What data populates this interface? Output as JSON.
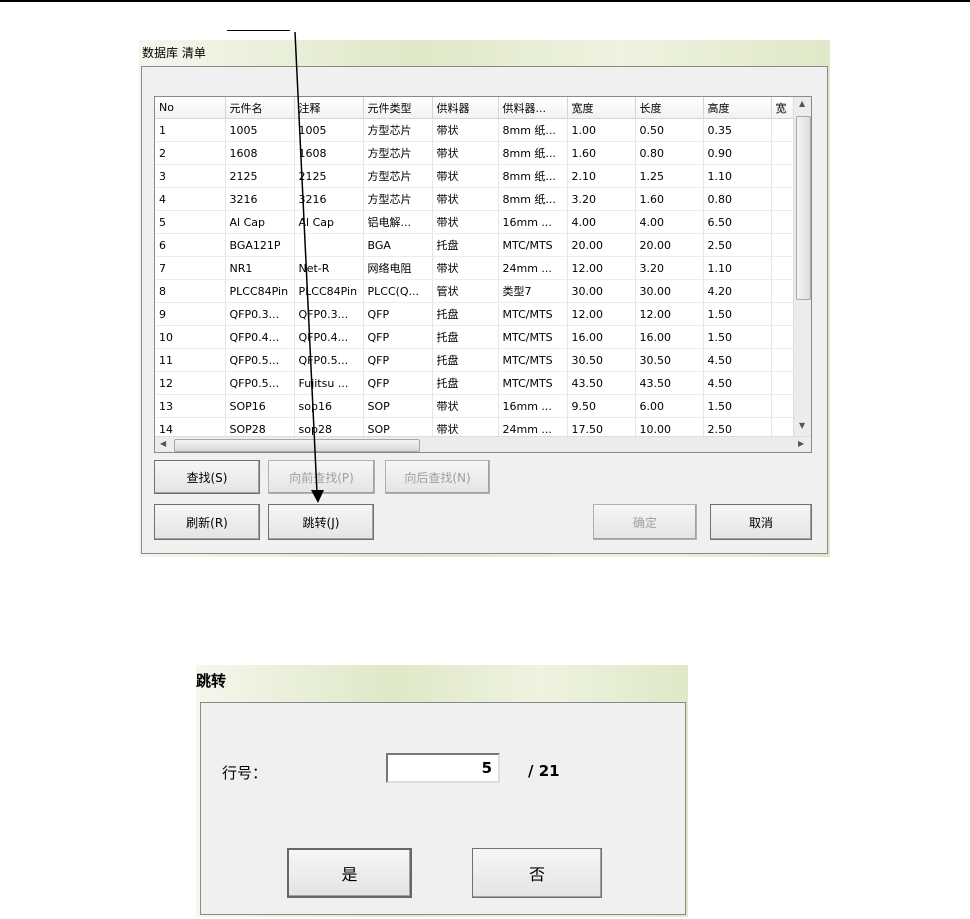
{
  "list_dialog": {
    "title": "数据库 清单",
    "columns": [
      "No",
      "元件名",
      "注释",
      "元件类型",
      "供料器",
      "供料器...",
      "宽度",
      "长度",
      "高度",
      "宽"
    ],
    "rows": [
      [
        "1",
        "1005",
        "1005",
        "方型芯片",
        "带状",
        "8mm 纸...",
        "1.00",
        "0.50",
        "0.35",
        ""
      ],
      [
        "2",
        "1608",
        "1608",
        "方型芯片",
        "带状",
        "8mm 纸...",
        "1.60",
        "0.80",
        "0.90",
        ""
      ],
      [
        "3",
        "2125",
        "2125",
        "方型芯片",
        "带状",
        "8mm 纸...",
        "2.10",
        "1.25",
        "1.10",
        ""
      ],
      [
        "4",
        "3216",
        "3216",
        "方型芯片",
        "带状",
        "8mm 纸...",
        "3.20",
        "1.60",
        "0.80",
        ""
      ],
      [
        "5",
        "Al Cap",
        "Al Cap",
        "铝电解...",
        "带状",
        "16mm ...",
        "4.00",
        "4.00",
        "6.50",
        ""
      ],
      [
        "6",
        "BGA121P",
        "",
        "BGA",
        "托盘",
        "MTC/MTS",
        "20.00",
        "20.00",
        "2.50",
        ""
      ],
      [
        "7",
        "NR1",
        "Net-R",
        "网络电阻",
        "带状",
        "24mm ...",
        "12.00",
        "3.20",
        "1.10",
        ""
      ],
      [
        "8",
        "PLCC84Pin",
        "PLCC84Pin",
        "PLCC(Q...",
        "管状",
        "类型7",
        "30.00",
        "30.00",
        "4.20",
        ""
      ],
      [
        "9",
        "QFP0.3...",
        "QFP0.3...",
        "QFP",
        "托盘",
        "MTC/MTS",
        "12.00",
        "12.00",
        "1.50",
        ""
      ],
      [
        "10",
        "QFP0.4...",
        "QFP0.4...",
        "QFP",
        "托盘",
        "MTC/MTS",
        "16.00",
        "16.00",
        "1.50",
        ""
      ],
      [
        "11",
        "QFP0.5...",
        "QFP0.5...",
        "QFP",
        "托盘",
        "MTC/MTS",
        "30.50",
        "30.50",
        "4.50",
        ""
      ],
      [
        "12",
        "QFP0.5...",
        "Fujitsu ...",
        "QFP",
        "托盘",
        "MTC/MTS",
        "43.50",
        "43.50",
        "4.50",
        ""
      ],
      [
        "13",
        "SOP16",
        "sop16",
        "SOP",
        "带状",
        "16mm ...",
        "9.50",
        "6.00",
        "1.50",
        ""
      ],
      [
        "14",
        "SOP28",
        "sop28",
        "SOP",
        "带状",
        "24mm ...",
        "17.50",
        "10.00",
        "2.50",
        ""
      ]
    ],
    "buttons": {
      "find": "查找(S)",
      "find_prev": "向前查找(P)",
      "find_next": "向后查找(N)",
      "refresh": "刷新(R)",
      "jump": "跳转(J)",
      "ok": "确定",
      "cancel": "取消"
    }
  },
  "jump_dialog": {
    "title": "跳转",
    "row_label": "行号：",
    "row_value": "5",
    "total": "/ 21",
    "yes": "是",
    "no": "否"
  }
}
